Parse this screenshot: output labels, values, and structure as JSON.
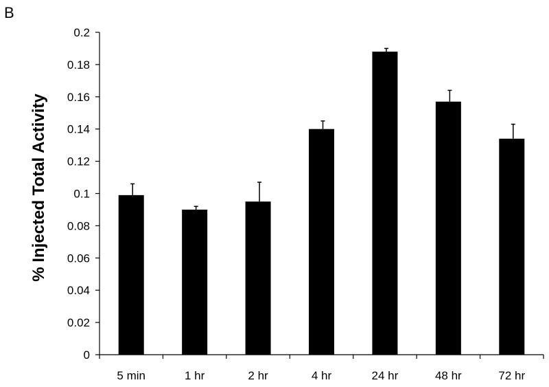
{
  "panel_label": "B",
  "chart_data": {
    "type": "bar",
    "title": "",
    "xlabel": "",
    "ylabel": "% Injected Total Activity",
    "categories": [
      "5 min",
      "1 hr",
      "2 hr",
      "4 hr",
      "24 hr",
      "48 hr",
      "72 hr"
    ],
    "series": [
      {
        "values": [
          0.099,
          0.09,
          0.095,
          0.14,
          0.188,
          0.157,
          0.134
        ],
        "errors": [
          0.007,
          0.002,
          0.012,
          0.005,
          0.002,
          0.007,
          0.009
        ],
        "color": "#000000"
      }
    ],
    "ylim": [
      0,
      0.2
    ],
    "yticks": [
      "0",
      "0.02",
      "0.04",
      "0.06",
      "0.08",
      "0.1",
      "0.12",
      "0.14",
      "0.16",
      "0.18",
      "0.2"
    ],
    "ytick_values": [
      0,
      0.02,
      0.04,
      0.06,
      0.08,
      0.1,
      0.12,
      0.14,
      0.16,
      0.18,
      0.2
    ],
    "grid": false,
    "legend": "none"
  }
}
